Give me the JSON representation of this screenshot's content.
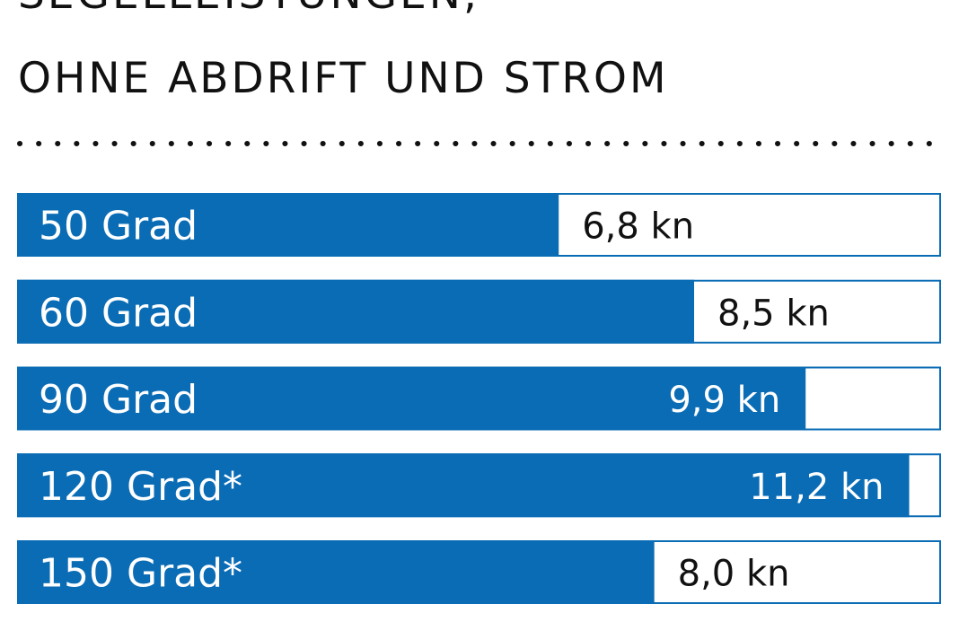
{
  "title_lines": [
    "SEGELLEISTUNGEN,",
    "OHNE ABDRIFT UND STROM"
  ],
  "colors": {
    "bar": "#0a6cb5",
    "track_border": "#0a6cb5",
    "text_dark": "#111111",
    "text_light": "#ffffff"
  },
  "chart_data": {
    "type": "bar",
    "orientation": "horizontal",
    "title": "SEGELLEISTUNGEN, OHNE ABDRIFT UND STROM",
    "unit": "kn",
    "xlim": [
      0,
      11.6
    ],
    "categories": [
      "50 Grad",
      "60 Grad",
      "90 Grad",
      "120 Grad*",
      "150 Grad*"
    ],
    "values": [
      6.8,
      8.5,
      9.9,
      11.2,
      8.0
    ],
    "value_labels": [
      "6,8 kn",
      "8,5 kn",
      "9,9 kn",
      "11,2 kn",
      "8,0 kn"
    ]
  }
}
